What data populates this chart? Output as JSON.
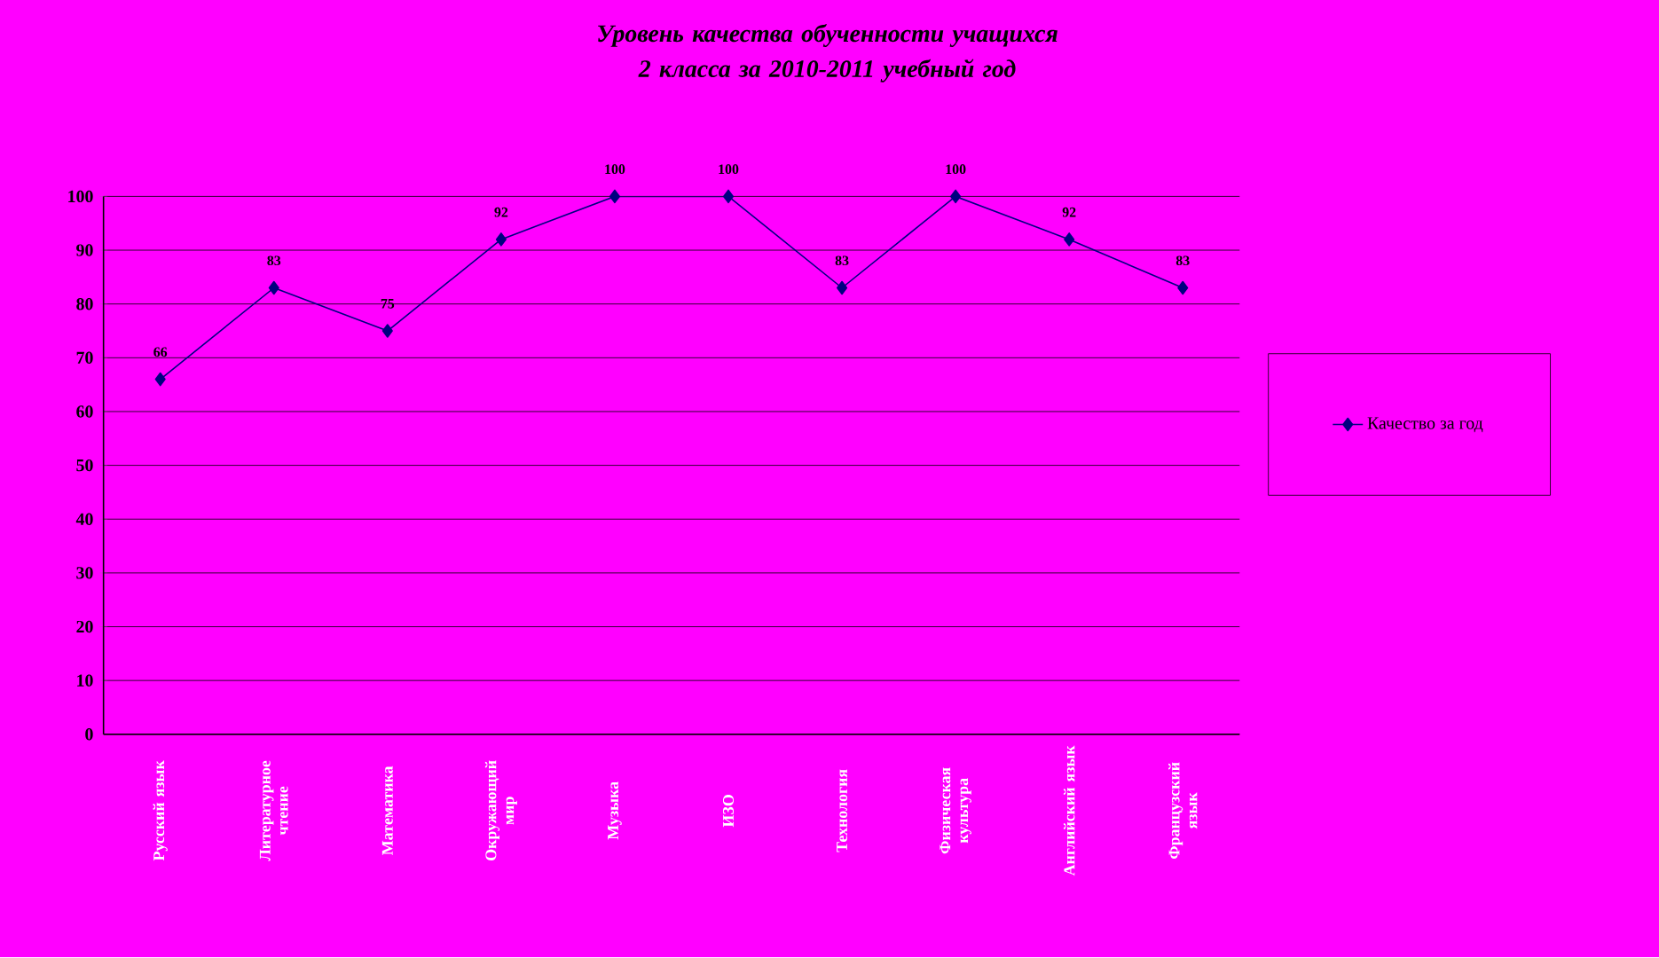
{
  "chart_data": {
    "type": "line",
    "title": "Уровень качества обученности учащихся 2 класса за 2010-2011 учебный год",
    "categories": [
      "Русский язык",
      "Литературное чтение",
      "Математика",
      "Окружающий мир",
      "Музыка",
      "ИЗО",
      "Технология",
      "Физическая культура",
      "Английский язык",
      "Французский язык"
    ],
    "series": [
      {
        "name": "Качество за год",
        "color": "#000080",
        "values": [
          66,
          83,
          75,
          92,
          100,
          100,
          83,
          100,
          92,
          83
        ]
      }
    ],
    "ylim": [
      0,
      100
    ],
    "yticks": [
      0,
      10,
      20,
      30,
      40,
      50,
      60,
      70,
      80,
      90,
      100
    ],
    "grid": "y",
    "legend": "right",
    "marker": "diamond",
    "line_style": "solid",
    "data_labels": true
  }
}
